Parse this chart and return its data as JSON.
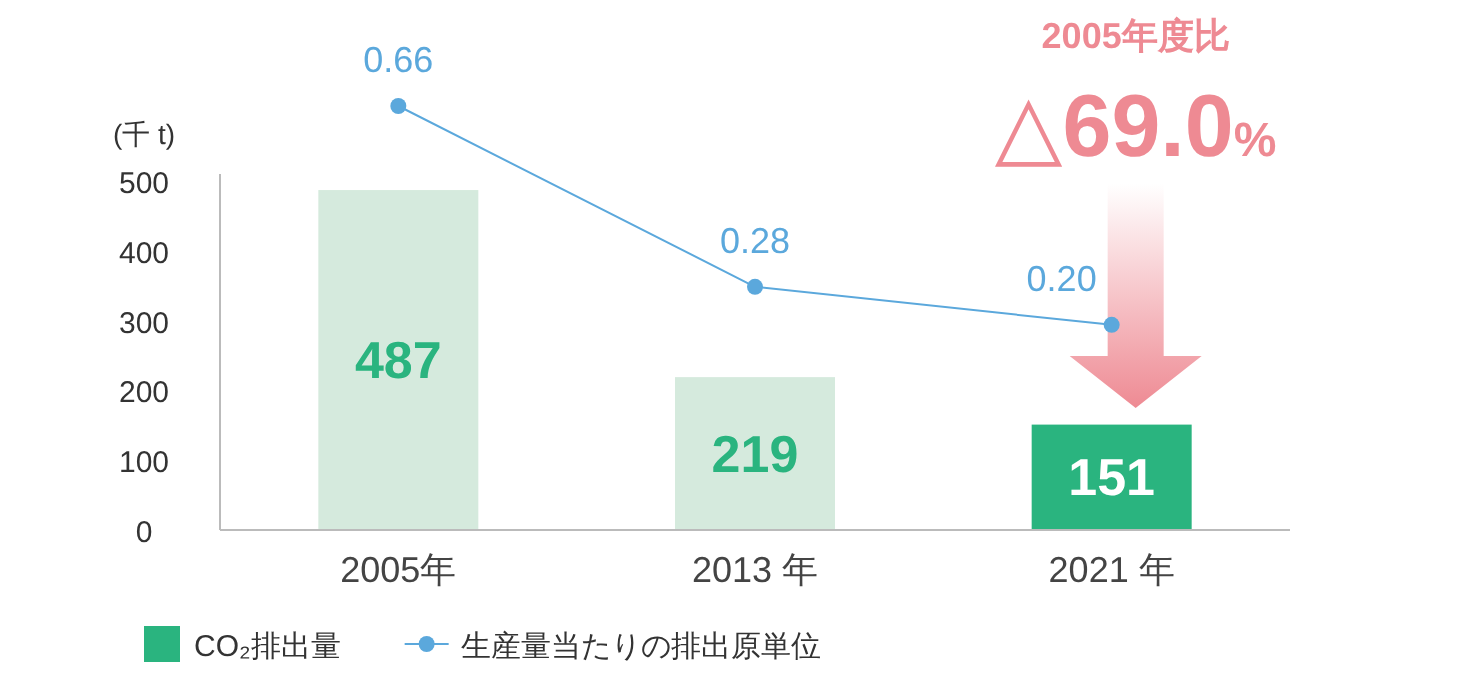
{
  "chart_data": {
    "type": "bar",
    "ylabel": "(千 t)",
    "categories": [
      "2005年",
      "2013 年",
      "2021 年"
    ],
    "series": [
      {
        "name": "CO₂排出量",
        "color": "#2ab47f",
        "colors": [
          "#d5eadd",
          "#d5eadd",
          "#2ab47f"
        ],
        "values": [
          487,
          219,
          151
        ]
      },
      {
        "name": "生産量当たりの排出原単位",
        "type": "line",
        "axis": "y2",
        "color": "#5ba8dc",
        "marker": "circle",
        "values": [
          0.66,
          0.28,
          0.2
        ],
        "value_labels": [
          "0.66",
          "0.28",
          "0.20"
        ]
      }
    ],
    "ylim": [
      0,
      510
    ],
    "yticks": [
      0,
      100,
      200,
      300,
      400,
      500
    ],
    "data_labels": true,
    "grid": false,
    "legend": "bottom",
    "annotations": [
      "2005年度比",
      "△69.0%"
    ]
  }
}
